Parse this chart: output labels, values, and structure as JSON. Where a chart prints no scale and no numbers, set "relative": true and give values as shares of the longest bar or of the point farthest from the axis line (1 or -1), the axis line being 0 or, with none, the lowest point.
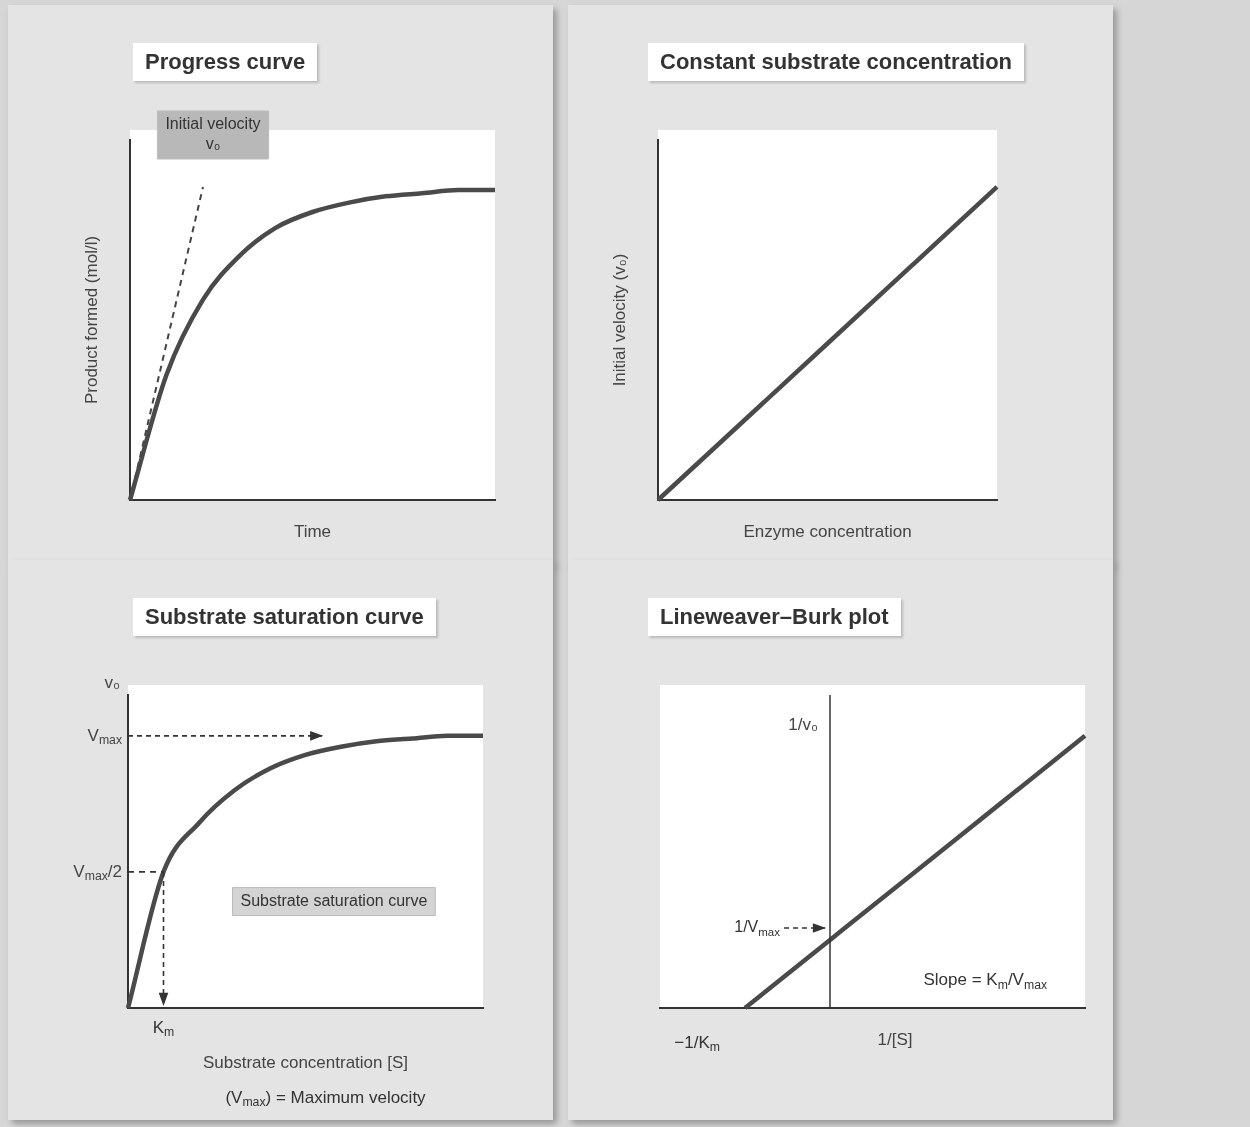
{
  "chart_data": [
    {
      "type": "line",
      "title": "Progress curve",
      "xlabel": "Time",
      "ylabel": "Product formed (mol/l)",
      "relative": true,
      "tick_labels": false,
      "marker": "none",
      "line_style": "solid",
      "categories": [
        null,
        null,
        null,
        null,
        null,
        null,
        null,
        null,
        null,
        null,
        null
      ],
      "series": [
        {
          "color": "#4a4a4a",
          "values": [
            0,
            0.4,
            0.64,
            0.78,
            0.87,
            0.92,
            0.95,
            0.97,
            0.98,
            0.99,
            0.99
          ]
        },
        {
          "color": "#444444",
          "line_style": "dashed",
          "values": [
            0,
            0.5,
            1,
            null,
            null,
            null,
            null,
            null,
            null,
            null,
            null
          ]
        }
      ],
      "annotations": [
        "Initial velocity\nv₀"
      ]
    },
    {
      "type": "line",
      "title": "Constant substrate concentration",
      "xlabel": "Enzyme concentration",
      "ylabel": "Initial velocity (v₀)",
      "relative": true,
      "tick_labels": false,
      "marker": "none",
      "line_style": "solid",
      "categories": [
        null,
        null,
        null,
        null,
        null
      ],
      "series": [
        {
          "color": "#4a4a4a",
          "values": [
            0,
            0.25,
            0.5,
            0.75,
            1
          ]
        }
      ]
    },
    {
      "type": "line",
      "title": "Substrate saturation curve",
      "xlabel": "Substrate concentration [S]",
      "ylabel": "v₀",
      "relative": true,
      "tick_labels": false,
      "marker": "none",
      "line_style": "solid",
      "categories": [
        null,
        null,
        null,
        null,
        null,
        null,
        null,
        null,
        null,
        null,
        null
      ],
      "series": [
        {
          "color": "#4a4a4a",
          "values": [
            0,
            0.5,
            0.68,
            0.8,
            0.88,
            0.93,
            0.96,
            0.98,
            0.99,
            1,
            1
          ]
        }
      ],
      "ref_lines": [
        {
          "axis": "y",
          "value": 1,
          "label": "V$_{max}$",
          "line_style": "dashed"
        },
        {
          "axis": "y",
          "value": 0.5,
          "label": "V$_{max}$/2",
          "line_style": "dashed"
        }
      ],
      "annotations": [
        "K$_{m}$",
        "Substrate saturation curve",
        "(V$_{max}$) = Maximum velocity"
      ]
    },
    {
      "type": "line",
      "title": "Lineweaver–Burk plot",
      "xlabel": "1/[S]",
      "ylabel": "1/v₀",
      "relative": true,
      "tick_labels": false,
      "marker": "none",
      "line_style": "solid",
      "categories": [
        null,
        null,
        null,
        null,
        null,
        null
      ],
      "series": [
        {
          "color": "#4a4a4a",
          "values": [
            null,
            0,
            0.25,
            0.5,
            0.75,
            1
          ]
        }
      ],
      "annotations": [
        "−1/K$_{m}$",
        "1/V$_{max}$",
        "Slope = K$_{m}$/V$_{max}$"
      ]
    }
  ]
}
